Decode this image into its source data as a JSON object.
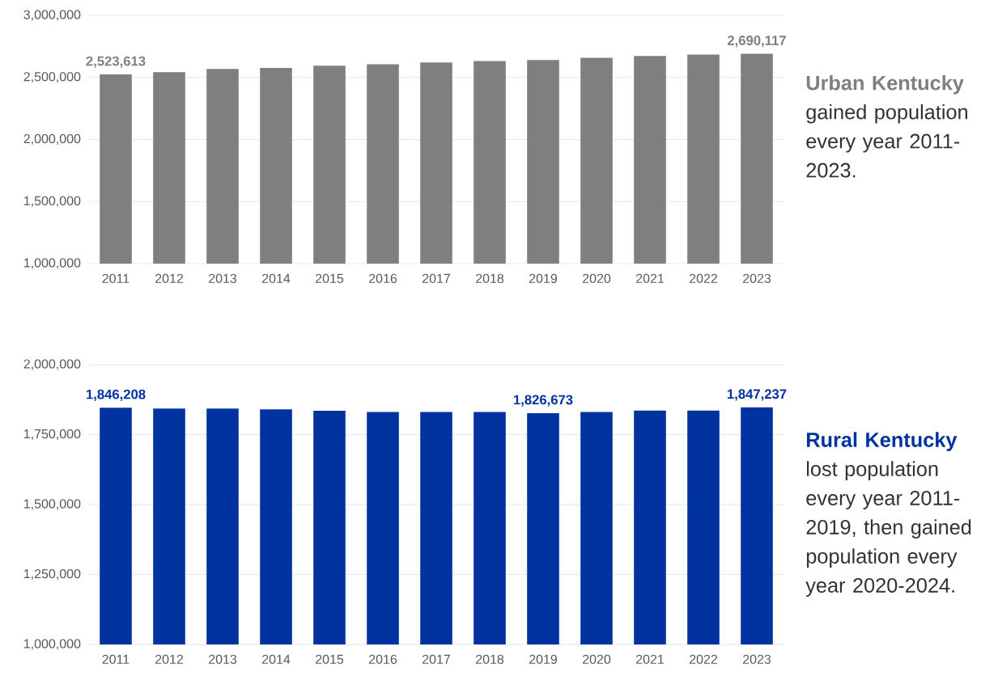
{
  "chart_data": [
    {
      "type": "bar",
      "categories": [
        "2011",
        "2012",
        "2013",
        "2014",
        "2015",
        "2016",
        "2017",
        "2018",
        "2019",
        "2020",
        "2021",
        "2022",
        "2023"
      ],
      "values": [
        2523613,
        2542000,
        2569000,
        2576000,
        2595000,
        2606000,
        2621000,
        2632000,
        2640000,
        2658000,
        2673000,
        2684000,
        2690117
      ],
      "color": "#7f7f7f",
      "value_labels": [
        "2,523,613",
        null,
        null,
        null,
        null,
        null,
        null,
        null,
        null,
        null,
        null,
        null,
        "2,690,117"
      ],
      "ylim": [
        1000000,
        3000000
      ],
      "yticks": [
        {
          "value": 1000000,
          "label": "1,000,000"
        },
        {
          "value": 1500000,
          "label": "1,500,000"
        },
        {
          "value": 2000000,
          "label": "2,000,000"
        },
        {
          "value": 2500000,
          "label": "2,500,000"
        },
        {
          "value": 3000000,
          "label": "3,000,000"
        }
      ],
      "grid": "y",
      "annotations": [
        "Urban Kentucky",
        "gained population every year 2011-2023."
      ]
    },
    {
      "type": "bar",
      "categories": [
        "2011",
        "2012",
        "2013",
        "2014",
        "2015",
        "2016",
        "2017",
        "2018",
        "2019",
        "2020",
        "2021",
        "2022",
        "2023"
      ],
      "values": [
        1846208,
        1843000,
        1843000,
        1840000,
        1835000,
        1831000,
        1831000,
        1831000,
        1826673,
        1831000,
        1836000,
        1836000,
        1847237
      ],
      "color": "#0033a0",
      "value_labels": [
        "1,846,208",
        null,
        null,
        null,
        null,
        null,
        null,
        null,
        "1,826,673",
        null,
        null,
        null,
        "1,847,237"
      ],
      "ylim": [
        1000000,
        2000000
      ],
      "yticks": [
        {
          "value": 1000000,
          "label": "1,000,000"
        },
        {
          "value": 1250000,
          "label": "1,250,000"
        },
        {
          "value": 1500000,
          "label": "1,500,000"
        },
        {
          "value": 1750000,
          "label": "1,750,000"
        },
        {
          "value": 2000000,
          "label": "2,000,000"
        }
      ],
      "grid": "y",
      "annotations": [
        "Rural Kentucky",
        "lost population every year 2011-2019, then gained population every year 2020-2024."
      ]
    }
  ]
}
